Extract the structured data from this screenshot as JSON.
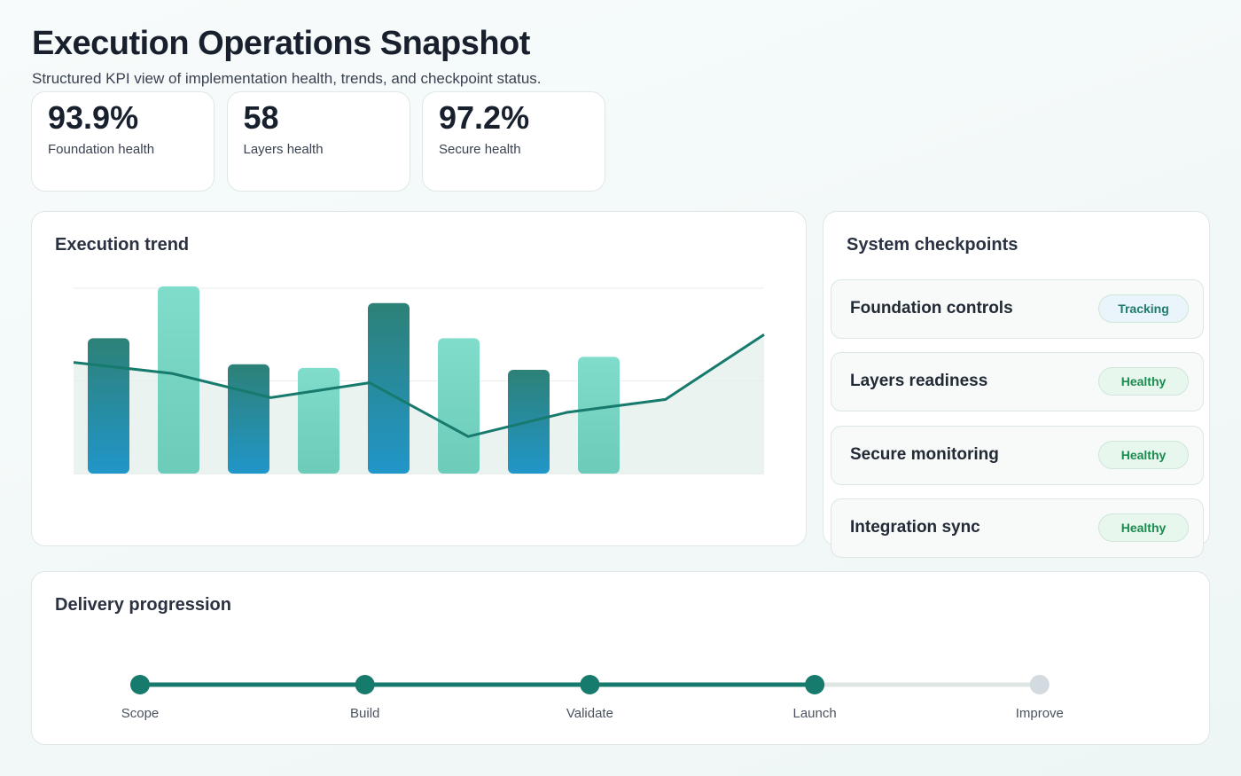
{
  "header": {
    "title": "Execution Operations Snapshot",
    "subtitle": "Structured KPI view of implementation health, trends, and checkpoint status."
  },
  "kpis": [
    {
      "value": "93.9%",
      "label": "Foundation health"
    },
    {
      "value": "58",
      "label": "Layers health"
    },
    {
      "value": "97.2%",
      "label": "Secure health"
    }
  ],
  "chart_data": {
    "type": "bar",
    "title": "Execution trend",
    "categories": [
      null,
      null,
      null,
      null,
      null,
      null,
      null,
      null
    ],
    "ylim": [
      0,
      110
    ],
    "yticks": [
      50,
      100
    ],
    "grid": true,
    "series": [
      {
        "type": "bar",
        "colors": [
          [
            "#2d8177",
            "#2196c9"
          ],
          [
            "#80dccb",
            "#6ccbb9"
          ],
          [
            "#2d8177",
            "#2196c9"
          ],
          [
            "#80dccb",
            "#6ccbb9"
          ],
          [
            "#2d8177",
            "#2196c9"
          ],
          [
            "#80dccb",
            "#6ccbb9"
          ],
          [
            "#2d8177",
            "#2196c9"
          ],
          [
            "#80dccb",
            "#6ccbb9"
          ]
        ],
        "values": [
          73,
          101,
          59,
          57,
          92,
          73,
          56,
          63
        ]
      },
      {
        "type": "line",
        "color": "#167a6d",
        "area_color": "#e4efeb",
        "values": [
          60,
          54,
          41,
          49,
          20,
          33,
          40,
          75
        ]
      }
    ]
  },
  "checkpoints": {
    "title": "System checkpoints",
    "items": [
      {
        "name": "Foundation controls",
        "status": "Tracking",
        "color": "#1d7a6d",
        "bg": "#eaf4fb"
      },
      {
        "name": "Layers readiness",
        "status": "Healthy",
        "color": "#1b8a4e",
        "bg": "#e8f7ee"
      },
      {
        "name": "Secure monitoring",
        "status": "Healthy",
        "color": "#1b8a4e",
        "bg": "#e8f7ee"
      },
      {
        "name": "Integration sync",
        "status": "Healthy",
        "color": "#1b8a4e",
        "bg": "#e8f7ee"
      }
    ]
  },
  "progression": {
    "title": "Delivery progression",
    "steps": [
      {
        "label": "Scope",
        "done": true
      },
      {
        "label": "Build",
        "done": true
      },
      {
        "label": "Validate",
        "done": true
      },
      {
        "label": "Launch",
        "done": true
      },
      {
        "label": "Improve",
        "done": false
      }
    ]
  }
}
